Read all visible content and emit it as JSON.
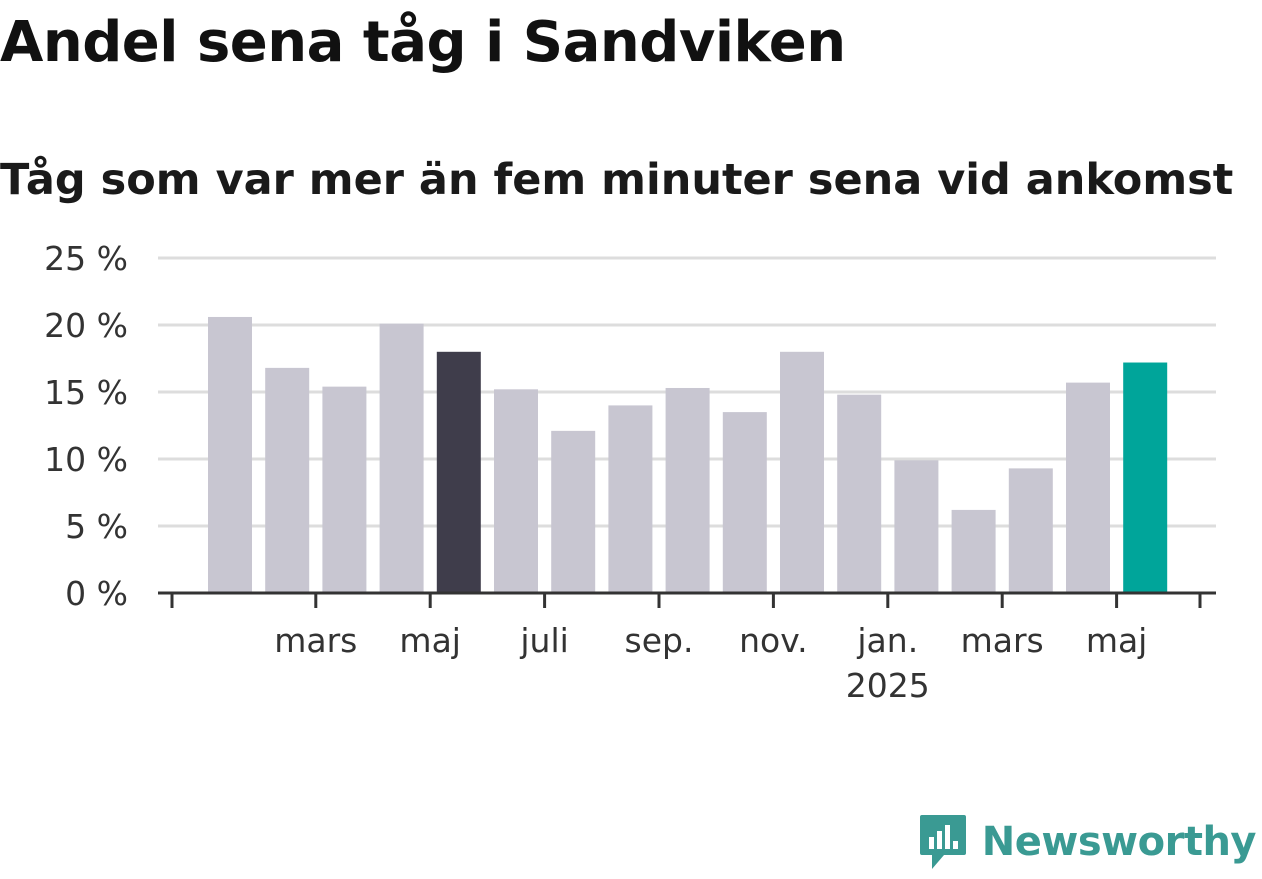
{
  "chart_data": {
    "type": "bar",
    "title": "Andel sena tåg i Sandviken",
    "subtitle": "Tåg som var mer än fem minuter sena vid ankomst",
    "xlabel": "",
    "ylabel": "",
    "ylim": [
      0,
      25
    ],
    "yticks": [
      0,
      5,
      10,
      15,
      20,
      25
    ],
    "ytick_suffix": " %",
    "grid": true,
    "x_tick_labels": [
      {
        "after_bar": 1,
        "label": "mars",
        "sublabel": ""
      },
      {
        "after_bar": 3,
        "label": "maj",
        "sublabel": ""
      },
      {
        "after_bar": 5,
        "label": "juli",
        "sublabel": ""
      },
      {
        "after_bar": 7,
        "label": "sep.",
        "sublabel": ""
      },
      {
        "after_bar": 9,
        "label": "nov.",
        "sublabel": ""
      },
      {
        "after_bar": 11,
        "label": "jan.",
        "sublabel": "2025"
      },
      {
        "after_bar": 13,
        "label": "mars",
        "sublabel": ""
      },
      {
        "after_bar": 15,
        "label": "maj",
        "sublabel": ""
      }
    ],
    "values": [
      20.6,
      16.8,
      15.4,
      20.1,
      18.0,
      15.2,
      12.1,
      14.0,
      15.3,
      13.5,
      18.0,
      14.8,
      9.9,
      6.2,
      9.3,
      15.7,
      17.2
    ],
    "bar_roles": [
      "base",
      "base",
      "base",
      "base",
      "highlight",
      "base",
      "base",
      "base",
      "base",
      "base",
      "base",
      "base",
      "base",
      "base",
      "base",
      "base",
      "latest"
    ],
    "colors": {
      "base": "#c8c6d1",
      "highlight": "#3f3d4b",
      "latest": "#00a59a",
      "grid": "#dddddd",
      "axis": "#333333"
    }
  },
  "logo": {
    "text": "Newsworthy",
    "icon": "bar-chart-speech-bubble-icon",
    "color": "#3a9a93"
  }
}
